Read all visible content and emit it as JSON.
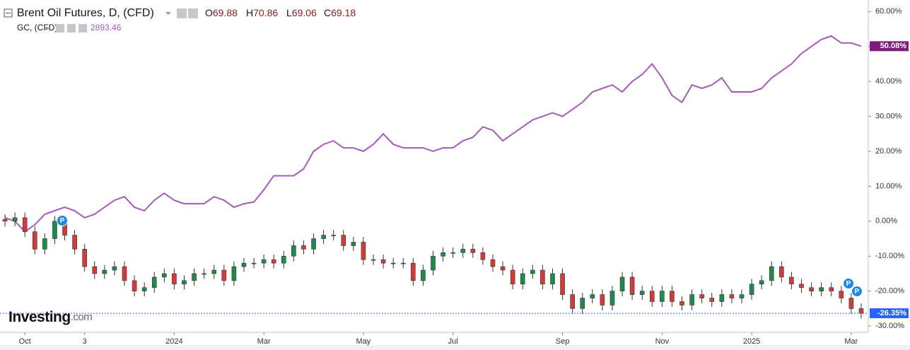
{
  "chart_data": {
    "type": "candlestick",
    "watermark": [
      "Investing",
      ".com"
    ],
    "event_marker": "P",
    "categories": [
      null,
      null,
      "Oct",
      null,
      null,
      null,
      null,
      null,
      "3",
      null,
      null,
      null,
      null,
      null,
      null,
      null,
      null,
      "2024",
      null,
      null,
      null,
      null,
      null,
      null,
      null,
      null,
      "Mar",
      null,
      null,
      null,
      null,
      null,
      null,
      null,
      null,
      null,
      "May",
      null,
      null,
      null,
      null,
      null,
      null,
      null,
      null,
      "Jul",
      null,
      null,
      null,
      null,
      null,
      null,
      null,
      null,
      null,
      null,
      "Sep",
      null,
      null,
      null,
      null,
      null,
      null,
      null,
      null,
      null,
      "Nov",
      null,
      null,
      null,
      null,
      null,
      null,
      null,
      null,
      "2025",
      null,
      null,
      null,
      null,
      null,
      null,
      null,
      null,
      null,
      "Mar",
      null
    ],
    "ylim": [
      -31.8,
      63.3
    ],
    "yticks": [
      {
        "value": 60,
        "label": "60.00%"
      },
      {
        "value": 50,
        "label": "50.00%"
      },
      {
        "value": 40,
        "label": "40.00%"
      },
      {
        "value": 30,
        "label": "30.00%"
      },
      {
        "value": 20,
        "label": "20.00%"
      },
      {
        "value": 10,
        "label": "10.00%"
      },
      {
        "value": 0,
        "label": "0.00%"
      },
      {
        "value": -10,
        "label": "-10.00%"
      },
      {
        "value": -20,
        "label": "-20.00%"
      },
      {
        "value": -30,
        "label": "-30.00%"
      }
    ],
    "series": [
      {
        "name": "Brent Oil Futures, D, (CFD)",
        "type": "candlestick",
        "colors": {
          "up": "#1f8a4c",
          "down": "#d33b3b"
        },
        "label_color": "#2962ff",
        "ohlc_labels": [
          {
            "label": "O",
            "value": 69.88
          },
          {
            "label": "H",
            "value": 70.86
          },
          {
            "label": "L",
            "value": 69.06
          },
          {
            "label": "C",
            "value": 69.18
          }
        ],
        "open": [
          0.5,
          0,
          1,
          -3,
          -8,
          -5,
          0,
          -4,
          -8,
          -13,
          -15,
          -14,
          -13,
          -17,
          -20,
          -19,
          -16,
          -15,
          -18,
          -17,
          -15,
          -15,
          -14,
          -17,
          -13,
          -12,
          -12,
          -11,
          -12,
          -10,
          -7,
          -8,
          -5,
          -4,
          -4,
          -7,
          -6,
          -11,
          -11,
          -12,
          -12,
          -12,
          -17,
          -14,
          -10,
          -9,
          -9,
          -8,
          -9,
          -11,
          -13,
          -14,
          -18,
          -15,
          -14,
          -18,
          -15,
          -21,
          -25,
          -22,
          -21,
          -24,
          -20,
          -16,
          -21,
          -20,
          -23,
          -20,
          -23,
          -24,
          -21,
          -22,
          -23,
          -21,
          -22,
          -21,
          -18,
          -17,
          -13,
          -16,
          -18,
          -19,
          -20,
          -19,
          -20,
          -22,
          -25
        ],
        "high": [
          2,
          2.5,
          2.5,
          -1.5,
          -3.5,
          1.5,
          1.5,
          -2.5,
          -6.5,
          -11.5,
          -12.5,
          -11.5,
          -11.5,
          -15.5,
          -17.5,
          -14.5,
          -13.5,
          -13.5,
          -15.5,
          -13.5,
          -13.5,
          -12.5,
          -12.5,
          -11.5,
          -10.5,
          -10.5,
          -9.5,
          -9.5,
          -8.5,
          -5.5,
          -5.5,
          -3.5,
          -2.5,
          -2.5,
          -2.5,
          -4.5,
          -4.5,
          -9.5,
          -9.5,
          -10.5,
          -10.5,
          -10.5,
          -12.5,
          -8.5,
          -7.5,
          -7.5,
          -6.5,
          -6.5,
          -7.5,
          -9.5,
          -11.5,
          -12.5,
          -13.5,
          -12.5,
          -12.5,
          -13.5,
          -13.5,
          -19.5,
          -20.5,
          -19.5,
          -19.5,
          -18.5,
          -14.5,
          -14.5,
          -18.5,
          -18.5,
          -18.5,
          -18.5,
          -21.5,
          -19.5,
          -19.5,
          -20.5,
          -19.5,
          -19.5,
          -19.5,
          -16.5,
          -15.5,
          -11.5,
          -11.5,
          -14.5,
          -16.5,
          -17.5,
          -17.5,
          -17.5,
          -18.5,
          -20.5,
          -23.5
        ],
        "low": [
          -1.5,
          -1.5,
          -4.5,
          -9.5,
          -9.5,
          -6.5,
          -5.5,
          -9.5,
          -14.5,
          -16.5,
          -16.5,
          -15.5,
          -18.5,
          -21.5,
          -21.5,
          -20.5,
          -17.5,
          -19.5,
          -19.5,
          -18.5,
          -16.5,
          -16.5,
          -18.5,
          -18.5,
          -14.5,
          -13.5,
          -13.5,
          -13.5,
          -13.5,
          -11.5,
          -9.5,
          -9.5,
          -6.5,
          -5.5,
          -8.5,
          -8.5,
          -12.5,
          -12.5,
          -13.5,
          -13.5,
          -13.5,
          -18.5,
          -18.5,
          -15.5,
          -11.5,
          -10.5,
          -10.5,
          -10.5,
          -12.5,
          -14.5,
          -15.5,
          -19.5,
          -19.5,
          -16.5,
          -19.5,
          -19.5,
          -22.5,
          -26.5,
          -26.5,
          -23.5,
          -25.5,
          -25.5,
          -21.5,
          -22.5,
          -22.5,
          -24.5,
          -24.5,
          -24.5,
          -25.5,
          -25.5,
          -23.5,
          -24.5,
          -24.5,
          -23.5,
          -23.5,
          -22.5,
          -19.5,
          -18.5,
          -17.5,
          -19.5,
          -20.5,
          -21.5,
          -21.5,
          -21.5,
          -23.5,
          -26.5,
          -27.85
        ],
        "close": [
          0,
          1,
          -3,
          -8,
          -5,
          0,
          -4,
          -8,
          -13,
          -15,
          -14,
          -13,
          -17,
          -20,
          -19,
          -16,
          -15,
          -18,
          -17,
          -15,
          -15,
          -14,
          -17,
          -13,
          -12,
          -12,
          -11,
          -12,
          -10,
          -7,
          -8,
          -5,
          -4,
          -4,
          -7,
          -6,
          -11,
          -11,
          -12,
          -12,
          -12,
          -17,
          -14,
          -10,
          -9,
          -9,
          -8,
          -9,
          -11,
          -13,
          -14,
          -18,
          -15,
          -14,
          -18,
          -15,
          -21,
          -25,
          -22,
          -21,
          -24,
          -20,
          -16,
          -21,
          -20,
          -23,
          -20,
          -23,
          -24,
          -21,
          -22,
          -23,
          -21,
          -22,
          -21,
          -18,
          -17,
          -13,
          -16,
          -18,
          -19,
          -20,
          -19,
          -20,
          -22,
          -25,
          -26.35
        ],
        "last_label": "-26.35%"
      },
      {
        "name": "GC, (CFD)",
        "type": "line",
        "color": "#a55bb8",
        "price": 2893.46,
        "values": [
          1,
          0,
          -3,
          -1,
          2,
          3,
          4,
          3,
          1,
          2,
          4,
          6,
          7,
          4,
          3,
          6,
          8,
          6,
          5,
          5,
          5,
          7,
          6,
          4,
          5,
          5.5,
          9,
          13,
          13,
          13,
          15,
          20,
          22,
          23,
          21,
          21,
          20,
          22,
          25,
          22,
          21,
          21,
          21,
          20,
          21,
          21,
          23,
          24,
          27,
          26,
          23,
          25,
          27,
          29,
          30,
          31,
          30,
          32,
          34,
          37,
          38,
          39,
          37,
          40,
          42,
          45,
          41,
          36,
          34,
          39,
          38,
          39,
          41,
          37,
          37,
          37,
          38,
          41,
          43,
          45,
          48,
          50,
          52,
          53,
          51,
          51,
          50.08
        ],
        "last_label": "50.08%"
      }
    ]
  }
}
